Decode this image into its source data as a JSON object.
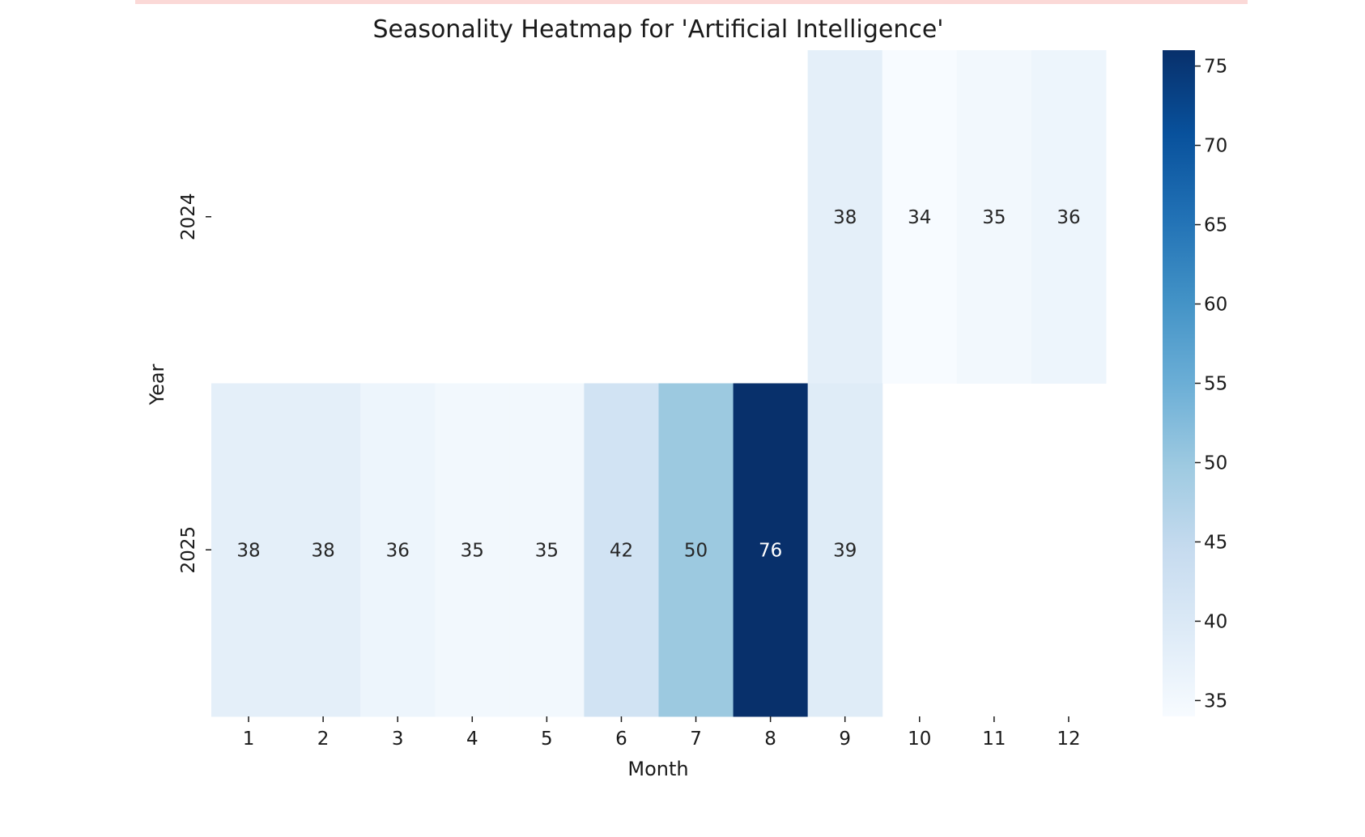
{
  "chart_data": {
    "type": "heatmap",
    "title": "Seasonality Heatmap for 'Artificial Intelligence'",
    "xlabel": "Month",
    "ylabel": "Year",
    "x_categories": [
      "1",
      "2",
      "3",
      "4",
      "5",
      "6",
      "7",
      "8",
      "9",
      "10",
      "11",
      "12"
    ],
    "y_categories": [
      "2024",
      "2025"
    ],
    "values": [
      [
        null,
        null,
        null,
        null,
        null,
        null,
        null,
        null,
        38,
        34,
        35,
        36
      ],
      [
        38,
        38,
        36,
        35,
        35,
        42,
        50,
        76,
        39,
        null,
        null,
        null
      ]
    ],
    "colorbar": {
      "colormap": "Blues",
      "range": [
        34,
        76
      ],
      "ticks": [
        35,
        40,
        45,
        50,
        55,
        60,
        65,
        70,
        75
      ]
    },
    "annotations": "cell values shown"
  }
}
